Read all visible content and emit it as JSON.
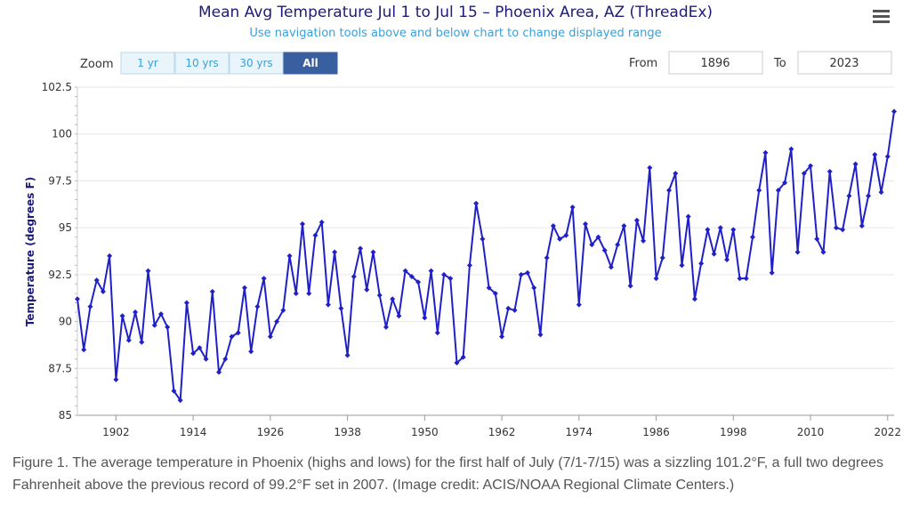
{
  "header": {
    "title": "Mean Avg Temperature Jul 1 to Jul 15 – Phoenix Area, AZ (ThreadEx)",
    "subtitle": "Use navigation tools above and below chart to change displayed range",
    "menu_icon": "hamburger-menu-icon"
  },
  "controls": {
    "zoom_label": "Zoom",
    "zoom_buttons": [
      {
        "label": "1 yr",
        "selected": false
      },
      {
        "label": "10 yrs",
        "selected": false
      },
      {
        "label": "30 yrs",
        "selected": false
      },
      {
        "label": "All",
        "selected": true
      }
    ],
    "from_label": "From",
    "from_value": "1896",
    "to_label": "To",
    "to_value": "2023"
  },
  "colors": {
    "series": "#2020c8",
    "selected_button": "#3a5fa0",
    "grid": "#e6e6e6"
  },
  "chart_data": {
    "type": "line",
    "xlabel": "",
    "ylabel": "Temperature (degrees F)",
    "xlim": [
      1896,
      2023
    ],
    "ylim": [
      85,
      102.5
    ],
    "x_ticks": [
      1902,
      1914,
      1926,
      1938,
      1950,
      1962,
      1974,
      1986,
      1998,
      2010,
      2022
    ],
    "y_ticks": [
      85,
      87.5,
      90,
      92.5,
      95,
      97.5,
      100,
      102.5
    ],
    "y_tick_labels": [
      "85",
      "87.5",
      "90",
      "92.5",
      "95",
      "97.5",
      "100",
      "102.5"
    ],
    "grid": "horizontal",
    "series": [
      {
        "x": [
          1896,
          1897,
          1898,
          1899,
          1900,
          1901,
          1902,
          1903,
          1904,
          1905,
          1906,
          1907,
          1908,
          1909,
          1910,
          1911,
          1912,
          1913,
          1914,
          1915,
          1916,
          1917,
          1918,
          1919,
          1920,
          1921,
          1922,
          1923,
          1924,
          1925,
          1926,
          1927,
          1928,
          1929,
          1930,
          1931,
          1932,
          1933,
          1934,
          1935,
          1936,
          1937,
          1938,
          1939,
          1940,
          1941,
          1942,
          1943,
          1944,
          1945,
          1946,
          1947,
          1948,
          1949,
          1950,
          1951,
          1952,
          1953,
          1954,
          1955,
          1956,
          1957,
          1958,
          1959,
          1960,
          1961,
          1962,
          1963,
          1964,
          1965,
          1966,
          1967,
          1968,
          1969,
          1970,
          1971,
          1972,
          1973,
          1974,
          1975,
          1976,
          1977,
          1978,
          1979,
          1980,
          1981,
          1982,
          1983,
          1984,
          1985,
          1986,
          1987,
          1988,
          1989,
          1990,
          1991,
          1992,
          1993,
          1994,
          1995,
          1996,
          1997,
          1998,
          1999,
          2000,
          2001,
          2002,
          2003,
          2004,
          2005,
          2006,
          2007,
          2008,
          2009,
          2010,
          2011,
          2012,
          2013,
          2014,
          2015,
          2016,
          2017,
          2018,
          2019,
          2020,
          2021,
          2022,
          2023
        ],
        "y": [
          91.2,
          88.5,
          90.8,
          92.2,
          91.6,
          93.5,
          86.9,
          90.3,
          89.0,
          90.5,
          88.9,
          92.7,
          89.8,
          90.4,
          89.7,
          86.3,
          85.8,
          91.0,
          88.3,
          88.6,
          88.0,
          91.6,
          87.3,
          88.0,
          89.2,
          89.4,
          91.8,
          88.4,
          90.8,
          92.3,
          89.2,
          90.0,
          90.6,
          93.5,
          91.5,
          95.2,
          91.5,
          94.6,
          95.3,
          90.9,
          93.7,
          90.7,
          88.2,
          92.4,
          93.9,
          91.7,
          93.7,
          91.4,
          89.7,
          91.2,
          90.3,
          92.7,
          92.4,
          92.1,
          90.2,
          92.7,
          89.4,
          92.5,
          92.3,
          87.8,
          88.1,
          93.0,
          96.3,
          94.4,
          91.8,
          91.5,
          89.2,
          90.7,
          90.6,
          92.5,
          92.6,
          91.8,
          89.3,
          93.4,
          95.1,
          94.4,
          94.6,
          96.1,
          90.9,
          95.2,
          94.1,
          94.5,
          93.8,
          92.9,
          94.1,
          95.1,
          91.9,
          95.4,
          94.3,
          98.2,
          92.3,
          93.4,
          97.0,
          97.9,
          93.0,
          95.6,
          91.2,
          93.1,
          94.9,
          93.6,
          95.0,
          93.3,
          94.9,
          92.3,
          92.3,
          94.5,
          97.0,
          99.0,
          92.6,
          97.0,
          97.4,
          99.2,
          93.7,
          97.9,
          98.3,
          94.4,
          93.7,
          98.0,
          95.0,
          94.9,
          96.7,
          98.4,
          95.1,
          96.7,
          98.9,
          96.9,
          98.8,
          101.2
        ]
      }
    ]
  },
  "caption": "Figure 1. The average temperature in Phoenix (highs and lows) for the first half of July (7/1-7/15) was a sizzling 101.2°F, a full two degrees Fahrenheit above the previous record of 99.2°F set in 2007. (Image credit: ACIS/NOAA Regional Climate Centers.)"
}
